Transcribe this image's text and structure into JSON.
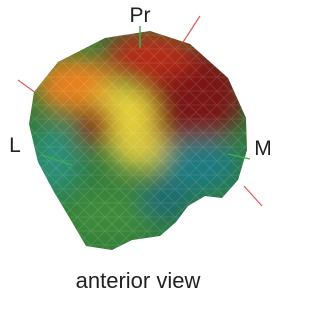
{
  "labels": {
    "top": "Pr",
    "left": "L",
    "right": "M"
  },
  "caption": "anterior view"
}
